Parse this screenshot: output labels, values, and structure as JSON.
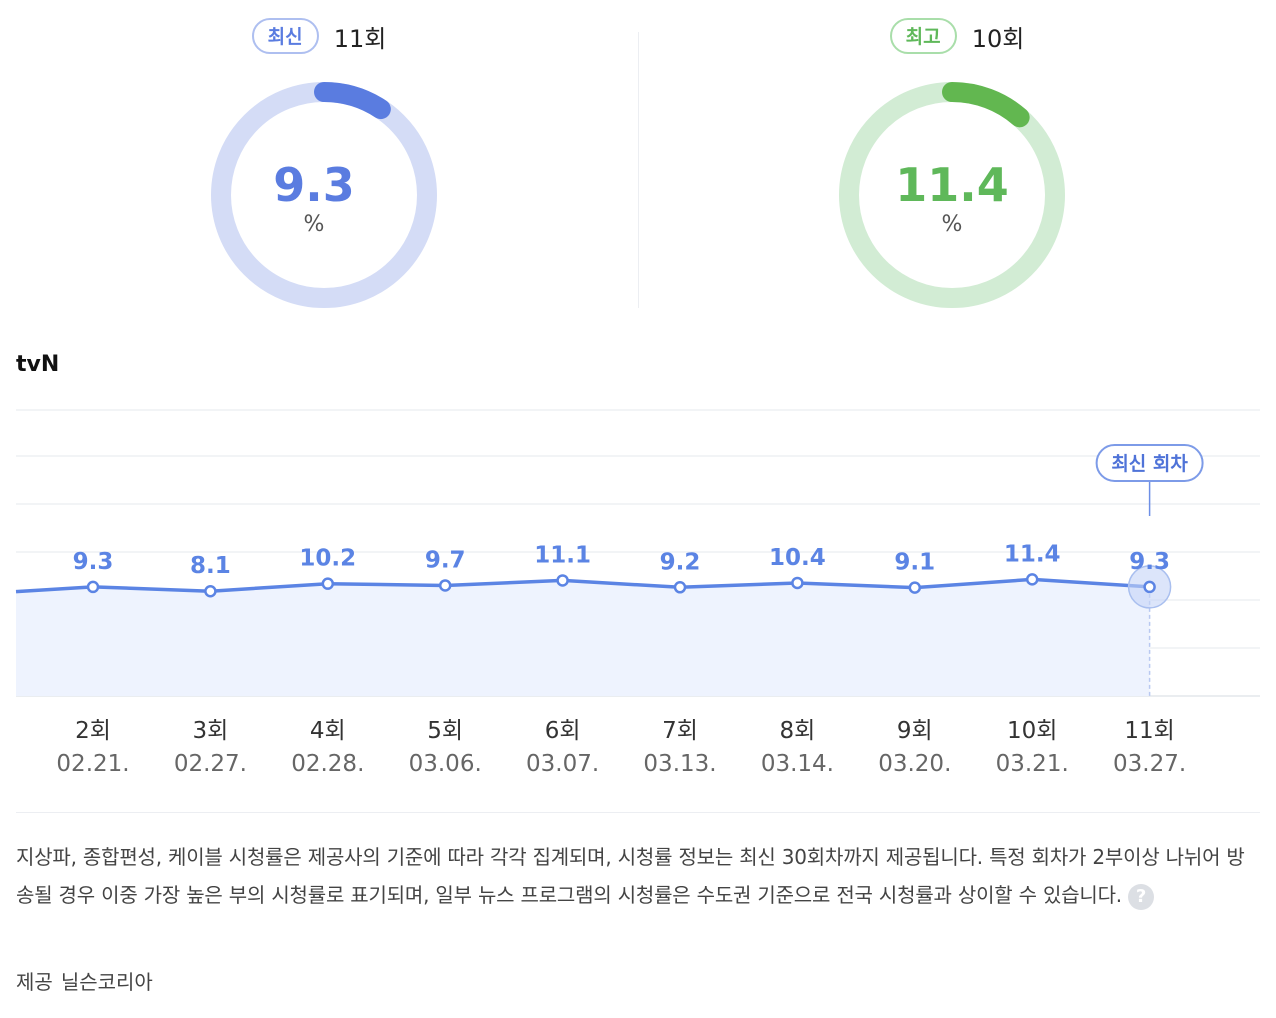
{
  "summary": {
    "latest": {
      "badge": "최신",
      "episode": "11회",
      "value": "9.3",
      "unit": "%",
      "fraction": 0.093,
      "color": "#5a7ce0",
      "track": "#d4dcf6"
    },
    "best": {
      "badge": "최고",
      "episode": "10회",
      "value": "11.4",
      "unit": "%",
      "fraction": 0.114,
      "color": "#62b750",
      "track": "#d2ecd4"
    }
  },
  "channel": "tvN",
  "chart_data": {
    "type": "area",
    "categories": [
      "2회",
      "3회",
      "4회",
      "5회",
      "6회",
      "7회",
      "8회",
      "9회",
      "10회",
      "11회"
    ],
    "dates": [
      "02.21.",
      "02.27.",
      "02.28.",
      "03.06.",
      "03.07.",
      "03.13.",
      "03.14.",
      "03.20.",
      "03.21.",
      "03.27."
    ],
    "series": [
      {
        "values": [
          9.3,
          8.1,
          10.2,
          9.7,
          11.1,
          9.2,
          10.4,
          9.1,
          11.4,
          9.3
        ]
      }
    ],
    "highlight_label": "최신 회차",
    "ylim": [
      -21,
      39
    ],
    "grid": true,
    "line_color": "#5b84e4",
    "fill_color": "#eef3fe"
  },
  "notice": "지상파, 종합편성, 케이블 시청률은 제공사의 기준에 따라 각각 집계되며, 시청률 정보는 최신 30회차까지 제공됩니다. 특정 회차가 2부이상 나뉘어 방송될 경우 이중 가장 높은 부의 시청률로 표기되며, 일부 뉴스 프로그램의 시청률은 수도권 기준으로 전국 시청률과 상이할 수 있습니다.",
  "help_glyph": "?",
  "source": {
    "label": "제공",
    "name": "닐슨코리아"
  }
}
